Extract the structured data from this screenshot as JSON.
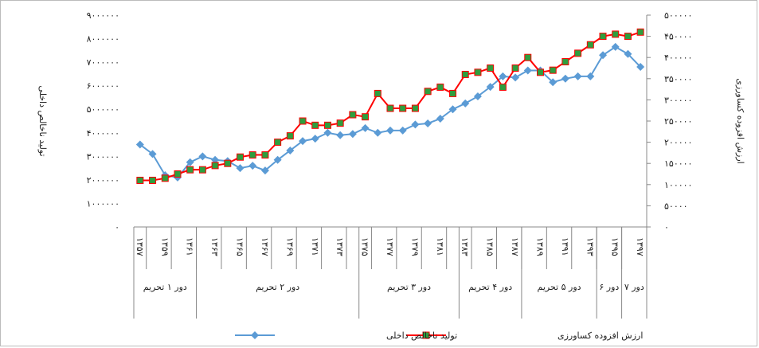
{
  "chart_data": {
    "type": "line",
    "categories": [
      "۱۳۵۷",
      null,
      "۱۳۵۹",
      null,
      "۱۳۶۱",
      null,
      "۱۳۶۳",
      null,
      "۱۳۶۵",
      null,
      "۱۳۶۷",
      null,
      "۱۳۶۹",
      null,
      "۱۳۷۱",
      null,
      "۱۳۷۳",
      null,
      "۱۳۷۵",
      null,
      "۱۳۷۷",
      null,
      "۱۳۷۹",
      null,
      "۱۳۸۱",
      null,
      "۱۳۸۳",
      null,
      "۱۳۸۵",
      null,
      "۱۳۸۷",
      null,
      "۱۳۸۹",
      null,
      "۱۳۹۱",
      null,
      "۱۳۹۳",
      null,
      "۱۳۹۵",
      null,
      "۱۳۹۷"
    ],
    "groups": [
      {
        "label": "دور ۱ تحریم",
        "count": 5
      },
      {
        "label": "دور ۲ تحریم",
        "count": 13
      },
      {
        "label": "دور ۳ تحریم",
        "count": 8
      },
      {
        "label": "دور ۴ تحریم",
        "count": 5
      },
      {
        "label": "دور ۵ تحریم",
        "count": 6
      },
      {
        "label": "دور ۶",
        "count": 2
      },
      {
        "label": "دور ۷",
        "count": 2
      }
    ],
    "ylabel": "تولید ناخالص داخلی",
    "y2label": "ارزش افزوده کساورزی",
    "ylim": [
      0,
      9000000
    ],
    "yticks": [
      {
        "value": 0,
        "label": "۰"
      },
      {
        "value": 1000000,
        "label": "۱۰۰۰۰۰۰"
      },
      {
        "value": 2000000,
        "label": "۲۰۰۰۰۰۰"
      },
      {
        "value": 3000000,
        "label": "۳۰۰۰۰۰۰"
      },
      {
        "value": 4000000,
        "label": "۴۰۰۰۰۰۰"
      },
      {
        "value": 5000000,
        "label": "۵۰۰۰۰۰۰"
      },
      {
        "value": 6000000,
        "label": "۶۰۰۰۰۰۰"
      },
      {
        "value": 7000000,
        "label": "۷۰۰۰۰۰۰"
      },
      {
        "value": 8000000,
        "label": "۸۰۰۰۰۰۰"
      },
      {
        "value": 9000000,
        "label": "۹۰۰۰۰۰۰"
      }
    ],
    "y2lim": [
      0,
      500000
    ],
    "y2ticks": [
      {
        "value": 0,
        "label": "۰"
      },
      {
        "value": 50000,
        "label": "۵۰۰۰۰"
      },
      {
        "value": 100000,
        "label": "۱۰۰۰۰۰"
      },
      {
        "value": 150000,
        "label": "۱۵۰۰۰۰"
      },
      {
        "value": 200000,
        "label": "۲۰۰۰۰۰"
      },
      {
        "value": 250000,
        "label": "۲۵۰۰۰۰"
      },
      {
        "value": 300000,
        "label": "۳۰۰۰۰۰"
      },
      {
        "value": 350000,
        "label": "۳۵۰۰۰۰"
      },
      {
        "value": 400000,
        "label": "۴۰۰۰۰۰"
      },
      {
        "value": 450000,
        "label": "۴۵۰۰۰۰"
      },
      {
        "value": 500000,
        "label": "۵۰۰۰۰۰"
      }
    ],
    "legend": "bottom",
    "series": [
      {
        "name": "تولید ناخالص داخلی",
        "color": "#5b9bd5",
        "marker": "diamond",
        "marker_color": "#5b9bd5",
        "values": [
          3500000,
          3100000,
          2200000,
          2100000,
          2750000,
          3000000,
          2850000,
          2800000,
          2500000,
          2600000,
          2400000,
          2850000,
          3250000,
          3650000,
          3750000,
          4000000,
          3900000,
          3950000,
          4200000,
          4000000,
          4100000,
          4100000,
          4350000,
          4400000,
          4600000,
          5000000,
          5250000,
          5550000,
          5950000,
          6400000,
          6350000,
          6650000,
          6650000,
          6150000,
          6300000,
          6400000,
          6400000,
          7300000,
          7650000,
          7350000,
          6800000
        ]
      },
      {
        "name": "ارزش افزوده کساورزی",
        "color": "#ff0000",
        "marker": "square",
        "marker_color": "#2e9e3e",
        "axis": "y2",
        "values": [
          110000,
          110000,
          115000,
          125000,
          135000,
          135000,
          145000,
          150000,
          165000,
          170000,
          170000,
          200000,
          215000,
          250000,
          240000,
          240000,
          245000,
          265000,
          260000,
          315000,
          280000,
          280000,
          280000,
          320000,
          330000,
          315000,
          360000,
          365000,
          375000,
          330000,
          375000,
          400000,
          365000,
          370000,
          390000,
          410000,
          430000,
          450000,
          455000,
          450000,
          460000
        ]
      }
    ]
  }
}
